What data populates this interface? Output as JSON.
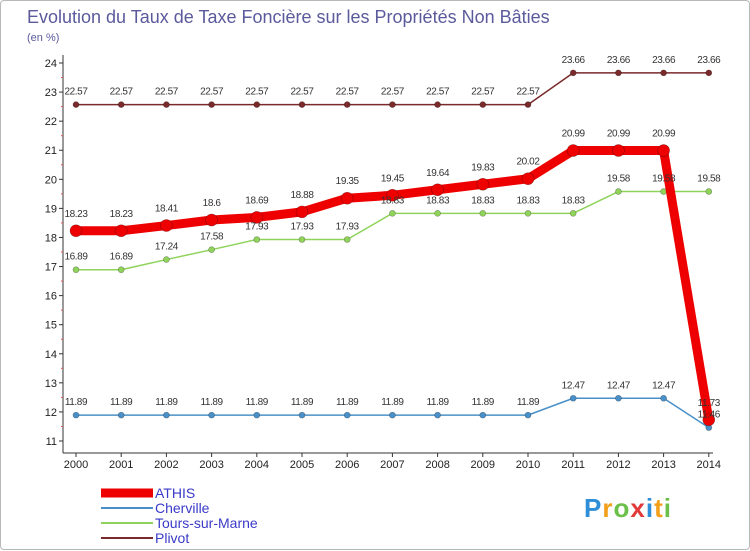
{
  "chart_data": {
    "type": "line",
    "title": "Evolution du Taux de Taxe Foncière sur les Propriétés Non Bâties",
    "subtitle": "(en %)",
    "categories": [
      "2000",
      "2001",
      "2002",
      "2003",
      "2004",
      "2005",
      "2006",
      "2007",
      "2008",
      "2009",
      "2010",
      "2011",
      "2012",
      "2013",
      "2014"
    ],
    "ylim": [
      11,
      24
    ],
    "yticks": [
      11,
      12,
      13,
      14,
      15,
      16,
      17,
      18,
      19,
      20,
      21,
      22,
      23,
      24
    ],
    "grid": false,
    "legend_position": "bottom-left",
    "series": [
      {
        "name": "ATHIS",
        "color": "#ee0000",
        "values": [
          18.23,
          18.23,
          18.41,
          18.6,
          18.69,
          18.88,
          19.35,
          19.45,
          19.64,
          19.83,
          20.02,
          20.99,
          20.99,
          20.99,
          11.73
        ],
        "labels": [
          "18.23",
          "18.23",
          "18.41",
          "18.6",
          "18.69",
          "18.88",
          "19.35",
          "19.45",
          "19.64",
          "19.83",
          "20.02",
          "20.99",
          "20.99",
          "20.99",
          "11.73"
        ]
      },
      {
        "name": "Cherville",
        "color": "#4a90c8",
        "values": [
          11.89,
          11.89,
          11.89,
          11.89,
          11.89,
          11.89,
          11.89,
          11.89,
          11.89,
          11.89,
          11.89,
          12.47,
          12.47,
          12.47,
          11.46
        ],
        "labels": [
          "11.89",
          "11.89",
          "11.89",
          "11.89",
          "11.89",
          "11.89",
          "11.89",
          "11.89",
          "11.89",
          "11.89",
          "11.89",
          "12.47",
          "12.47",
          "12.47",
          "11.46"
        ]
      },
      {
        "name": "Tours-sur-Marne",
        "color": "#8fd35a",
        "values": [
          16.89,
          16.89,
          17.24,
          17.58,
          17.93,
          17.93,
          17.93,
          18.83,
          18.83,
          18.83,
          18.83,
          18.83,
          19.58,
          19.58,
          19.58
        ],
        "labels": [
          "16.89",
          "16.89",
          "17.24",
          "17.58",
          "17.93",
          "17.93",
          "17.93",
          "18.83",
          "18.83",
          "18.83",
          "18.83",
          "18.83",
          "19.58",
          "19.58",
          "19.58"
        ]
      },
      {
        "name": "Plivot",
        "color": "#7a2a2a",
        "values": [
          22.57,
          22.57,
          22.57,
          22.57,
          22.57,
          22.57,
          22.57,
          22.57,
          22.57,
          22.57,
          22.57,
          23.66,
          23.66,
          23.66,
          23.66
        ],
        "labels": [
          "22.57",
          "22.57",
          "22.57",
          "22.57",
          "22.57",
          "22.57",
          "22.57",
          "22.57",
          "22.57",
          "22.57",
          "22.57",
          "23.66",
          "23.66",
          "23.66",
          "23.66"
        ]
      }
    ]
  },
  "logo": {
    "text": "Proxiti"
  }
}
